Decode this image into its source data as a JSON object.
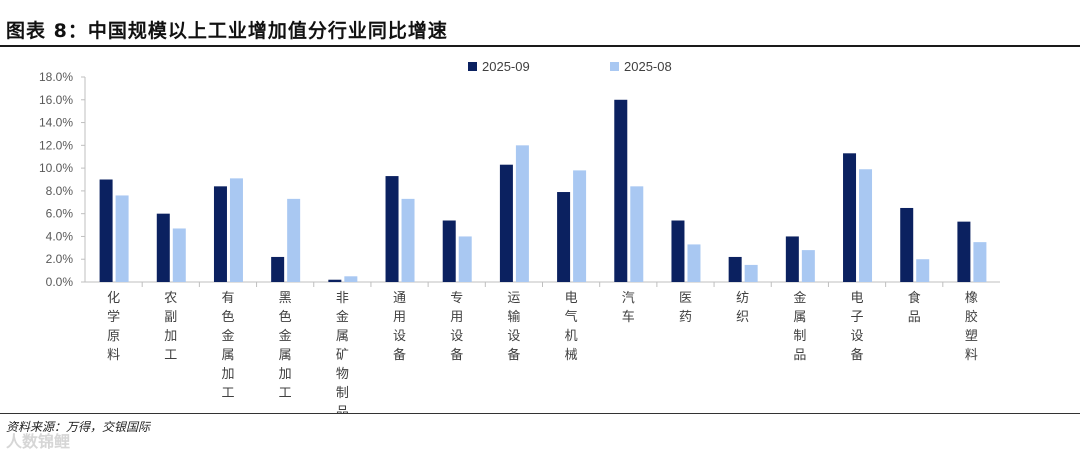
{
  "header": {
    "title": "图表 8：中国规模以上工业增加值分行业同比增速"
  },
  "footer": {
    "source": "资料来源：万得，交银国际",
    "watermark": "人数锦鲤"
  },
  "colors": {
    "series_1": "#0b2160",
    "series_2": "#a9c8f2",
    "axis": "#bfbfbf"
  },
  "chart_data": {
    "type": "bar",
    "title": "",
    "xlabel": "",
    "ylabel": "",
    "ylim": [
      0,
      18
    ],
    "y_ticks": [
      "0.0%",
      "2.0%",
      "4.0%",
      "6.0%",
      "8.0%",
      "10.0%",
      "12.0%",
      "14.0%",
      "16.0%",
      "18.0%"
    ],
    "y_unit": "%",
    "grid": false,
    "legend_position": "top-center",
    "categories": [
      "化学原料",
      "农副加工",
      "有色金属加工",
      "黑色金属加工",
      "非金属矿物制品",
      "通用设备",
      "专用设备",
      "运输设备",
      "电气机械",
      "汽车",
      "医药",
      "纺织",
      "金属制品",
      "电子设备",
      "食品",
      "橡胶塑料"
    ],
    "series": [
      {
        "name": "2025-09",
        "values": [
          9.0,
          6.0,
          8.4,
          2.2,
          0.2,
          9.3,
          5.4,
          10.3,
          7.9,
          16.0,
          5.4,
          2.2,
          4.0,
          11.3,
          6.5,
          5.3
        ]
      },
      {
        "name": "2025-08",
        "values": [
          7.6,
          4.7,
          9.1,
          7.3,
          0.5,
          7.3,
          4.0,
          12.0,
          9.8,
          8.4,
          3.3,
          1.5,
          2.8,
          9.9,
          2.0,
          3.5
        ]
      }
    ]
  }
}
